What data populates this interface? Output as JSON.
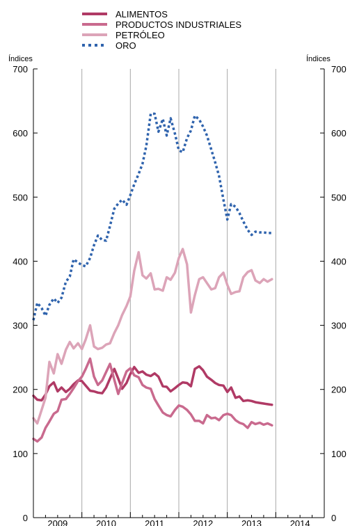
{
  "chart_data": {
    "type": "line",
    "title": "",
    "xlabel": "",
    "ylabel": "",
    "y_unit_left": "Índices",
    "y_unit_right": "Índices",
    "ylim": [
      0,
      700
    ],
    "y_ticks": [
      0,
      100,
      200,
      300,
      400,
      500,
      600,
      700
    ],
    "x_ticks": [
      "2009",
      "2010",
      "2011",
      "2012",
      "2013",
      "2014"
    ],
    "xlim": [
      2009.0,
      2015.0
    ],
    "grid": "vertical lines at year boundaries",
    "legend": "top",
    "series": [
      {
        "name": "ALIMENTOS",
        "color": "#b03a65",
        "style": "solid",
        "x": [
          2009.0,
          2009.08,
          2009.17,
          2009.25,
          2009.33,
          2009.42,
          2009.5,
          2009.58,
          2009.67,
          2009.75,
          2009.83,
          2009.92,
          2010.0,
          2010.08,
          2010.17,
          2010.25,
          2010.33,
          2010.42,
          2010.5,
          2010.58,
          2010.67,
          2010.75,
          2010.83,
          2010.92,
          2011.0,
          2011.08,
          2011.17,
          2011.25,
          2011.33,
          2011.42,
          2011.5,
          2011.58,
          2011.67,
          2011.75,
          2011.83,
          2011.92,
          2012.0,
          2012.08,
          2012.17,
          2012.25,
          2012.33,
          2012.42,
          2012.5,
          2012.58,
          2012.67,
          2012.75,
          2012.83,
          2012.92,
          2013.0,
          2013.08,
          2013.17,
          2013.25,
          2013.33,
          2013.42,
          2013.5,
          2013.58,
          2013.67,
          2013.75,
          2013.83,
          2013.92
        ],
        "values": [
          190,
          184,
          183,
          192,
          205,
          211,
          197,
          203,
          196,
          201,
          208,
          214,
          213,
          206,
          198,
          197,
          195,
          194,
          203,
          217,
          232,
          217,
          201,
          210,
          224,
          235,
          226,
          228,
          223,
          221,
          225,
          220,
          205,
          204,
          197,
          202,
          207,
          211,
          210,
          205,
          232,
          236,
          230,
          220,
          215,
          210,
          207,
          206,
          196,
          203,
          187,
          189,
          182,
          183,
          182,
          180,
          179,
          178,
          177,
          176
        ]
      },
      {
        "name": "PRODUCTOS INDUSTRIALES",
        "color": "#c96a8e",
        "style": "solid",
        "x": [
          2009.0,
          2009.08,
          2009.17,
          2009.25,
          2009.33,
          2009.42,
          2009.5,
          2009.58,
          2009.67,
          2009.75,
          2009.83,
          2009.92,
          2010.0,
          2010.08,
          2010.17,
          2010.25,
          2010.33,
          2010.42,
          2010.5,
          2010.58,
          2010.67,
          2010.75,
          2010.83,
          2010.92,
          2011.0,
          2011.08,
          2011.17,
          2011.25,
          2011.33,
          2011.42,
          2011.5,
          2011.58,
          2011.67,
          2011.75,
          2011.83,
          2011.92,
          2012.0,
          2012.08,
          2012.17,
          2012.25,
          2012.33,
          2012.42,
          2012.5,
          2012.58,
          2012.67,
          2012.75,
          2012.83,
          2012.92,
          2013.0,
          2013.08,
          2013.17,
          2013.25,
          2013.33,
          2013.42,
          2013.5,
          2013.58,
          2013.67,
          2013.75,
          2013.83,
          2013.92
        ],
        "values": [
          123,
          119,
          125,
          140,
          150,
          162,
          166,
          184,
          185,
          193,
          202,
          213,
          220,
          232,
          248,
          220,
          207,
          214,
          227,
          240,
          215,
          193,
          210,
          228,
          233,
          222,
          219,
          207,
          203,
          201,
          185,
          175,
          164,
          160,
          158,
          168,
          175,
          173,
          168,
          161,
          151,
          151,
          147,
          160,
          155,
          156,
          152,
          160,
          162,
          160,
          152,
          148,
          146,
          140,
          149,
          146,
          148,
          145,
          147,
          144
        ]
      },
      {
        "name": "PETRÓLEO",
        "color": "#dca4b8",
        "style": "solid",
        "x": [
          2009.0,
          2009.08,
          2009.17,
          2009.25,
          2009.33,
          2009.42,
          2009.5,
          2009.58,
          2009.67,
          2009.75,
          2009.83,
          2009.92,
          2010.0,
          2010.08,
          2010.17,
          2010.25,
          2010.33,
          2010.42,
          2010.5,
          2010.58,
          2010.67,
          2010.75,
          2010.83,
          2010.92,
          2011.0,
          2011.08,
          2011.17,
          2011.25,
          2011.33,
          2011.42,
          2011.5,
          2011.58,
          2011.67,
          2011.75,
          2011.83,
          2011.92,
          2012.0,
          2012.08,
          2012.17,
          2012.25,
          2012.33,
          2012.42,
          2012.5,
          2012.58,
          2012.67,
          2012.75,
          2012.83,
          2012.92,
          2013.0,
          2013.08,
          2013.17,
          2013.25,
          2013.33,
          2013.42,
          2013.5,
          2013.58,
          2013.67,
          2013.75,
          2013.83,
          2013.92
        ],
        "values": [
          155,
          147,
          168,
          187,
          243,
          225,
          255,
          240,
          262,
          274,
          264,
          272,
          263,
          278,
          300,
          267,
          263,
          265,
          270,
          272,
          288,
          300,
          316,
          330,
          345,
          385,
          414,
          378,
          373,
          381,
          356,
          357,
          354,
          375,
          371,
          382,
          405,
          419,
          395,
          320,
          347,
          372,
          375,
          366,
          356,
          358,
          375,
          382,
          363,
          349,
          352,
          353,
          375,
          383,
          386,
          370,
          366,
          372,
          368,
          372
        ]
      },
      {
        "name": "ORO",
        "color": "#2f63ad",
        "style": "dotted",
        "x": [
          2009.0,
          2009.08,
          2009.17,
          2009.25,
          2009.33,
          2009.42,
          2009.5,
          2009.58,
          2009.67,
          2009.75,
          2009.83,
          2009.92,
          2010.0,
          2010.08,
          2010.17,
          2010.25,
          2010.33,
          2010.42,
          2010.5,
          2010.58,
          2010.67,
          2010.75,
          2010.83,
          2010.92,
          2011.0,
          2011.08,
          2011.17,
          2011.25,
          2011.33,
          2011.42,
          2011.5,
          2011.58,
          2011.67,
          2011.75,
          2011.83,
          2011.92,
          2012.0,
          2012.08,
          2012.17,
          2012.25,
          2012.33,
          2012.42,
          2012.5,
          2012.58,
          2012.67,
          2012.75,
          2012.83,
          2012.92,
          2013.0,
          2013.08,
          2013.17,
          2013.25,
          2013.33,
          2013.42,
          2013.5,
          2013.58,
          2013.67,
          2013.75,
          2013.83,
          2013.92
        ],
        "values": [
          308,
          335,
          327,
          315,
          332,
          342,
          335,
          343,
          368,
          376,
          403,
          398,
          394,
          392,
          405,
          425,
          440,
          433,
          432,
          455,
          482,
          490,
          496,
          488,
          503,
          520,
          536,
          552,
          580,
          630,
          630,
          602,
          622,
          596,
          623,
          599,
          573,
          570,
          592,
          604,
          627,
          621,
          610,
          596,
          574,
          554,
          533,
          496,
          465,
          489,
          485,
          475,
          462,
          449,
          441,
          446,
          445,
          445,
          444,
          444
        ]
      }
    ]
  }
}
